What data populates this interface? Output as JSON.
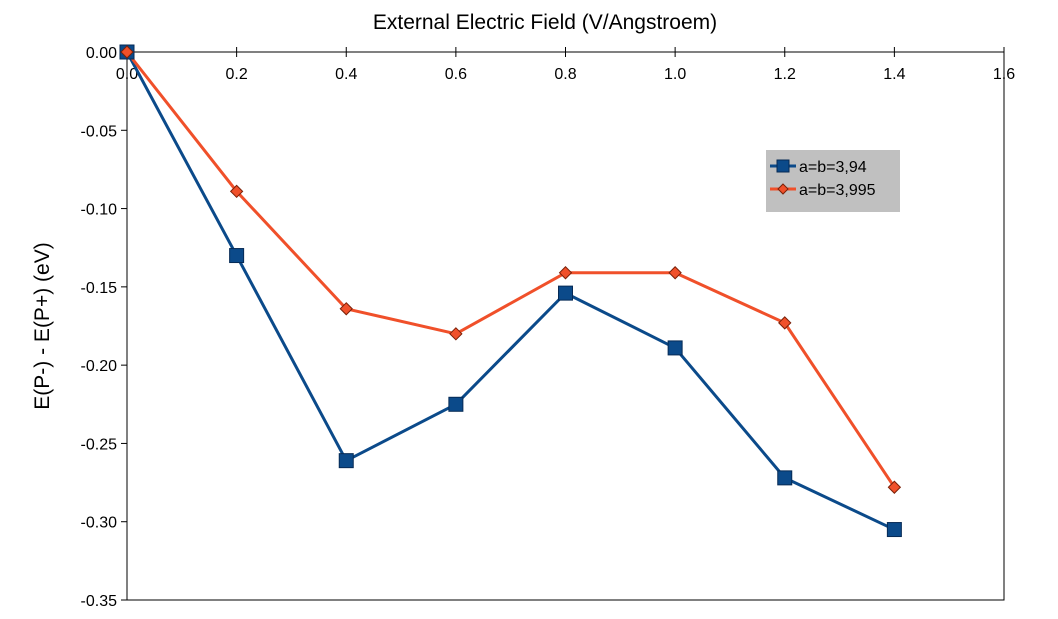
{
  "chart_data": {
    "type": "line",
    "title": "External Electric Field (V/Angstroem)",
    "xlabel": "External Electric Field (V/Angstroem)",
    "ylabel": "E(P-) - E(P+) (eV)",
    "xlim": [
      0,
      1.6
    ],
    "ylim": [
      -0.35,
      0.0
    ],
    "xticks": [
      "0.0",
      "0.2",
      "0.4",
      "0.6",
      "0.8",
      "1.0",
      "1.2",
      "1.4",
      "1.6"
    ],
    "yticks": [
      "0.00",
      "-0.05",
      "-0.10",
      "-0.15",
      "-0.20",
      "-0.25",
      "-0.30",
      "-0.35"
    ],
    "x": [
      0.0,
      0.2,
      0.4,
      0.6,
      0.8,
      1.0,
      1.2,
      1.4
    ],
    "series": [
      {
        "name": "a=b=3,94",
        "color": "#0b4a8a",
        "marker": "square",
        "values": [
          0.0,
          -0.13,
          -0.261,
          -0.225,
          -0.154,
          -0.189,
          -0.272,
          -0.305
        ]
      },
      {
        "name": "a=b=3,995",
        "color": "#f0502a",
        "marker": "diamond",
        "values": [
          0.0,
          -0.089,
          -0.164,
          -0.18,
          -0.141,
          -0.141,
          -0.173,
          -0.278
        ]
      }
    ],
    "grid": false,
    "legend_position": "top-right"
  }
}
